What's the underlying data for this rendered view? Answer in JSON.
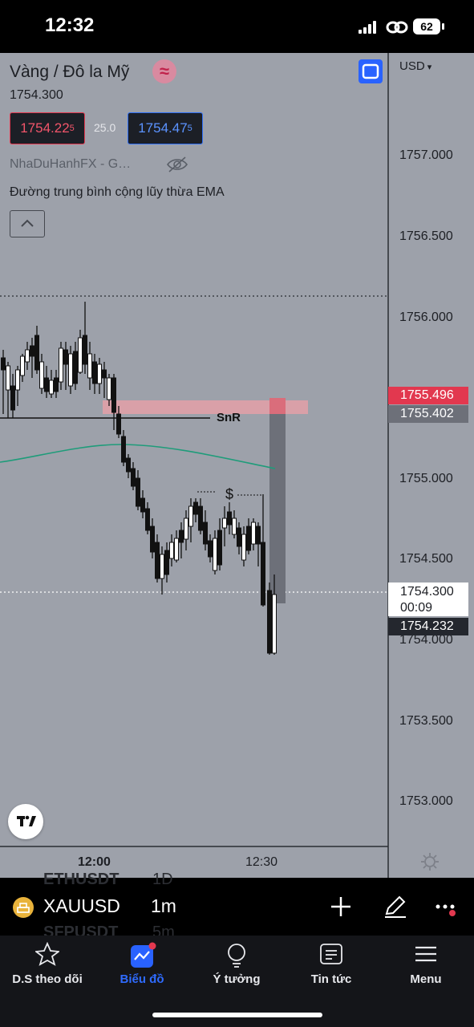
{
  "status_bar": {
    "time": "12:32",
    "battery": "62"
  },
  "header": {
    "title": "Vàng / Đô la Mỹ",
    "last_price": "1754.300",
    "bid_main": "1754.22",
    "bid_sup": "5",
    "spread": "25.0",
    "ask_main": "1754.47",
    "ask_sup": "5",
    "author": "NhaDuHanhFX - G…",
    "indicator_label": "Đường trung bình cộng lũy thừa EMA"
  },
  "price_axis": {
    "currency": "USD",
    "ticks": [
      "1757.000",
      "1756.500",
      "1756.000",
      "1755.500",
      "1755.000",
      "1754.500",
      "1754.000",
      "1753.500",
      "1753.000"
    ],
    "tag_red": "1755.496",
    "tag_grey": "1755.402",
    "tag_last": "1754.300",
    "tag_countdown": "00:09",
    "tag_dark": "1754.232"
  },
  "time_axis": {
    "labels": [
      "12:00",
      "12:30"
    ]
  },
  "annotations": {
    "snr": "SnR",
    "dollar": "$"
  },
  "colors": {
    "chart_bg": "#9da1aa",
    "ema": "#1f9c7a",
    "zone": "#e8a0a8",
    "bid": "#f2556a",
    "ask": "#5b93ff"
  },
  "symbol_bar": {
    "symbol": "XAUUSD",
    "interval": "1m",
    "ghost_top_symbol": "ETHUSDT",
    "ghost_top_interval": "1D",
    "ghost_bottom_symbol": "SFPUSDT",
    "ghost_bottom_interval": "5m"
  },
  "tabs": [
    {
      "label": "D.S theo dõi",
      "icon": "star-icon"
    },
    {
      "label": "Biểu đồ",
      "icon": "chart-icon"
    },
    {
      "label": "Ý tưởng",
      "icon": "lightbulb-icon"
    },
    {
      "label": "Tin tức",
      "icon": "news-icon"
    },
    {
      "label": "Menu",
      "icon": "menu-icon"
    }
  ]
}
